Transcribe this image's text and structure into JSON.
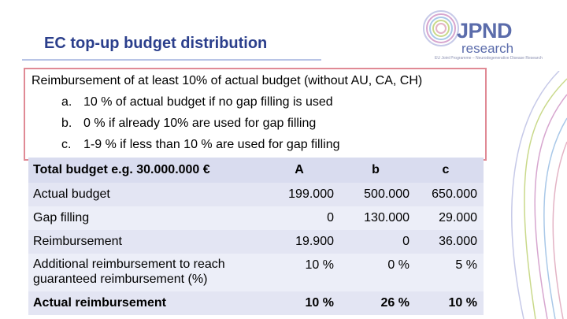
{
  "header": {
    "title": "EC top-up budget distribution",
    "logo": {
      "name": "JPND",
      "sub": "research",
      "tagline": "EU Joint Programme – Neurodegenerative Disease Research"
    }
  },
  "intro": {
    "main": "Reimbursement of at least 10% of actual budget (without AU, CA, CH)",
    "items": [
      {
        "marker": "a.",
        "text": "10 % of actual budget if no gap filling is used"
      },
      {
        "marker": "b.",
        "text": "0 % if already 10% are used for gap filling"
      },
      {
        "marker": "c.",
        "text": "1-9 %  if less than 10 % are used for gap filling"
      }
    ]
  },
  "table": {
    "header": {
      "label": "Total budget e.g.  30.000.000 €",
      "a": "A",
      "b": "b",
      "c": "c"
    },
    "rows": [
      {
        "label": "Actual budget",
        "a": "199.000",
        "b": "500.000",
        "c": "650.000"
      },
      {
        "label": "Gap filling",
        "a": "0",
        "b": "130.000",
        "c": "29.000"
      },
      {
        "label": "Reimbursement",
        "a": "19.900",
        "b": "0",
        "c": "36.000"
      },
      {
        "label": "Additional reimbursement to reach guaranteed reimbursement (%)",
        "a": "10 %",
        "b": "0 %",
        "c": "5 %"
      },
      {
        "label": "Actual reimbursement",
        "a": "10 %",
        "b": "26 %",
        "c": "10 %"
      }
    ]
  },
  "colors": {
    "title": "#2b3f8c",
    "box_border": "#e08a95",
    "row_bg": "#e3e5f3",
    "logo": "#5b6cab"
  }
}
